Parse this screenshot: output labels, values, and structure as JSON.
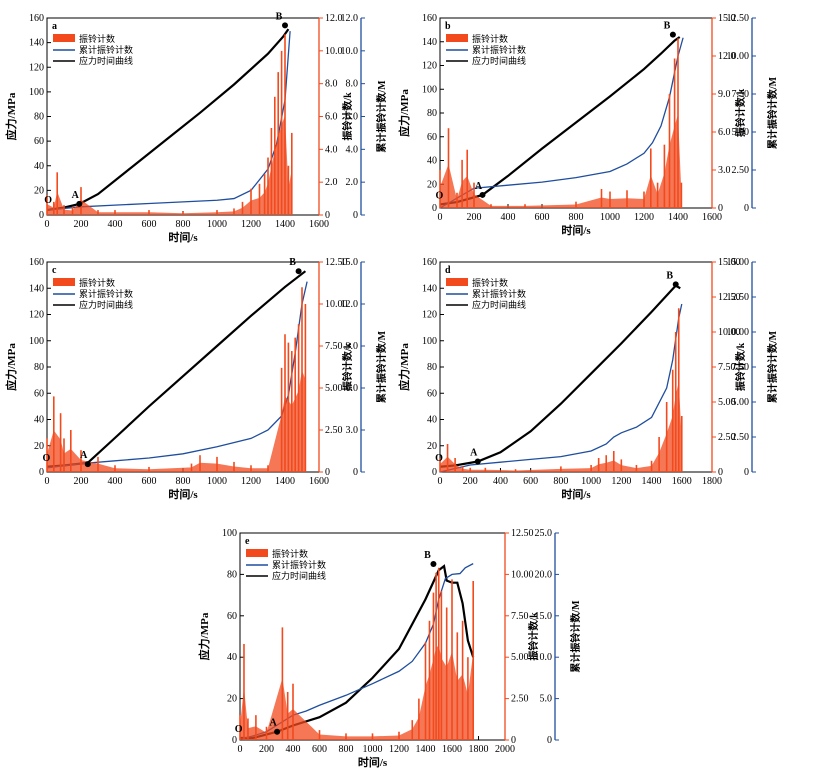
{
  "chart_data": [
    {
      "type": "line",
      "panel_label": "a",
      "xlabel": "时间/s",
      "ylabel": "应力/MPa",
      "y2label": "振铃计数/k",
      "y3label": "累计振铃计数/M",
      "xlim": [
        0,
        1600
      ],
      "xticks": [
        0,
        200,
        400,
        600,
        800,
        1000,
        1200,
        1400,
        1600
      ],
      "ylim": [
        0,
        160
      ],
      "yticks": [
        0,
        20,
        40,
        60,
        80,
        100,
        120,
        140,
        160
      ],
      "y2lim": [
        0,
        12
      ],
      "y2ticks": [
        "0",
        "2.0",
        "4.0",
        "6.0",
        "8.0",
        "10.0",
        "12.0"
      ],
      "y3lim": [
        0,
        12
      ],
      "y3ticks": [
        "0",
        "2.0",
        "4.0",
        "6.0",
        "8.0",
        "10.0",
        "12.0"
      ],
      "legend": [
        "振铃计数",
        "累计振铃计数",
        "应力时间曲线"
      ],
      "point_labels": [
        {
          "label": "O",
          "x": 30,
          "y": 5
        },
        {
          "label": "A",
          "x": 190,
          "y": 9
        },
        {
          "label": "B",
          "x": 1400,
          "y": 154
        }
      ],
      "series": [
        {
          "name": "应力时间曲线",
          "axis": "stress",
          "x": [
            0,
            50,
            100,
            190,
            300,
            500,
            700,
            900,
            1100,
            1300,
            1390,
            1420
          ],
          "y": [
            4,
            5,
            6,
            9,
            17,
            39,
            61,
            83,
            106,
            131,
            145,
            151
          ]
        },
        {
          "name": "累计振铃计数",
          "axis": "cumulative",
          "x": [
            0,
            200,
            400,
            600,
            800,
            1000,
            1100,
            1200,
            1300,
            1350,
            1400,
            1430
          ],
          "y": [
            0.3,
            0.5,
            0.6,
            0.7,
            0.8,
            0.9,
            1.0,
            1.5,
            2.8,
            4.3,
            7.0,
            11.2
          ]
        },
        {
          "name": "振铃计数",
          "axis": "ring",
          "x": [
            0,
            40,
            60,
            100,
            150,
            200,
            300,
            400,
            600,
            800,
            1000,
            1100,
            1150,
            1200,
            1250,
            1280,
            1300,
            1320,
            1340,
            1360,
            1380,
            1400,
            1420,
            1440
          ],
          "y": [
            1.2,
            0.8,
            2.6,
            0.6,
            0.5,
            1.7,
            0.3,
            0.3,
            0.3,
            0.2,
            0.3,
            0.4,
            0.8,
            1.6,
            1.9,
            2.5,
            3.5,
            5.3,
            7.2,
            8.7,
            10.0,
            11.0,
            3.0,
            5.0
          ]
        }
      ]
    },
    {
      "type": "line",
      "panel_label": "b",
      "xlabel": "时间/s",
      "ylabel": "应力/MPa",
      "y2label": "振铃计数/k",
      "y3label": "累计振铃计数/M",
      "xlim": [
        0,
        1600
      ],
      "xticks": [
        0,
        200,
        400,
        600,
        800,
        1000,
        1200,
        1400,
        1600
      ],
      "ylim": [
        0,
        160
      ],
      "yticks": [
        0,
        20,
        40,
        60,
        80,
        100,
        120,
        140,
        160
      ],
      "y2lim": [
        0,
        15
      ],
      "y2ticks": [
        "0",
        "3.0",
        "6.0",
        "9.0",
        "12.0",
        "15.0"
      ],
      "y3lim": [
        0,
        12.5
      ],
      "y3ticks": [
        "0",
        "2.50",
        "5.00",
        "7.50",
        "10.00",
        "12.50"
      ],
      "legend": [
        "振铃计数",
        "累计振铃计数",
        "应力时间曲线"
      ],
      "point_labels": [
        {
          "label": "O",
          "x": 20,
          "y": 3
        },
        {
          "label": "A",
          "x": 250,
          "y": 11
        },
        {
          "label": "B",
          "x": 1370,
          "y": 146
        }
      ],
      "series": [
        {
          "name": "应力时间曲线",
          "axis": "stress",
          "x": [
            0,
            100,
            250,
            400,
            600,
            800,
            1000,
            1200,
            1300,
            1380,
            1410
          ],
          "y": [
            3,
            5,
            11,
            27,
            50,
            72,
            94,
            117,
            130,
            141,
            144
          ]
        },
        {
          "name": "累计振铃计数",
          "axis": "cumulative",
          "x": [
            0,
            200,
            400,
            600,
            800,
            1000,
            1100,
            1200,
            1250,
            1300,
            1350,
            1400,
            1430
          ],
          "y": [
            0,
            1.3,
            1.5,
            1.7,
            2.0,
            2.4,
            2.9,
            3.6,
            4.3,
            5.4,
            7.3,
            10.0,
            11.2
          ]
        },
        {
          "name": "振铃计数",
          "axis": "ring",
          "x": [
            0,
            50,
            100,
            130,
            160,
            200,
            300,
            500,
            800,
            950,
            1000,
            1100,
            1200,
            1240,
            1280,
            1320,
            1350,
            1380,
            1400,
            1420
          ],
          "y": [
            3.0,
            6.3,
            1.2,
            3.8,
            4.6,
            2.0,
            0.3,
            0.3,
            0.5,
            1.5,
            1.3,
            1.4,
            1.3,
            4.7,
            2.0,
            5.0,
            9.0,
            11.8,
            13.4,
            2.0
          ]
        }
      ]
    },
    {
      "type": "line",
      "panel_label": "c",
      "xlabel": "时间/s",
      "ylabel": "应力/MPa",
      "y2label": "振铃计数/k",
      "y3label": "累计振铃计数/M",
      "xlim": [
        0,
        1600
      ],
      "xticks": [
        0,
        200,
        400,
        600,
        800,
        1000,
        1200,
        1400,
        1600
      ],
      "ylim": [
        0,
        160
      ],
      "yticks": [
        0,
        20,
        40,
        60,
        80,
        100,
        120,
        140,
        160
      ],
      "y2lim": [
        0,
        12.5
      ],
      "y2ticks": [
        "0",
        "2.50",
        "5.00",
        "7.50",
        "10.00",
        "12.50"
      ],
      "y3lim": [
        0,
        15
      ],
      "y3ticks": [
        "0",
        "3.0",
        "6.0",
        "9.0",
        "12.0",
        "15.0"
      ],
      "legend": [
        "振铃计数",
        "累计振铃计数",
        "应力时间曲线"
      ],
      "point_labels": [
        {
          "label": "O",
          "x": 20,
          "y": 4
        },
        {
          "label": "A",
          "x": 240,
          "y": 6
        },
        {
          "label": "B",
          "x": 1480,
          "y": 153
        }
      ],
      "series": [
        {
          "name": "应力时间曲线",
          "axis": "stress",
          "x": [
            0,
            100,
            240,
            400,
            600,
            800,
            1000,
            1200,
            1400,
            1500,
            1520
          ],
          "y": [
            4,
            5,
            7,
            26,
            50,
            73,
            96,
            119,
            141,
            151,
            153
          ]
        },
        {
          "name": "累计振铃计数",
          "axis": "cumulative",
          "x": [
            0,
            200,
            400,
            600,
            800,
            1000,
            1200,
            1300,
            1380,
            1420,
            1460,
            1500,
            1530
          ],
          "y": [
            0.3,
            0.6,
            0.8,
            1.0,
            1.3,
            1.8,
            2.4,
            3.0,
            4.0,
            5.5,
            8.5,
            12.0,
            13.6
          ]
        },
        {
          "name": "振铃计数",
          "axis": "ring",
          "x": [
            0,
            40,
            80,
            100,
            140,
            200,
            300,
            400,
            600,
            850,
            900,
            1000,
            1100,
            1200,
            1300,
            1380,
            1400,
            1420,
            1440,
            1460,
            1480,
            1500,
            1520
          ],
          "y": [
            2.0,
            4.5,
            3.5,
            2.0,
            2.5,
            1.3,
            0.9,
            0.4,
            0.3,
            0.5,
            1.0,
            0.9,
            0.6,
            0.4,
            0.4,
            6.2,
            8.2,
            7.7,
            7.2,
            8.0,
            8.8,
            11.0,
            10.0
          ]
        }
      ]
    },
    {
      "type": "line",
      "panel_label": "d",
      "xlabel": "时间/s",
      "ylabel": "应力/MPa",
      "y2label": "振铃计数/k",
      "y3label": "累计振铃计数/M",
      "xlim": [
        0,
        1800
      ],
      "xticks": [
        0,
        200,
        400,
        600,
        800,
        1000,
        1200,
        1400,
        1600,
        1800
      ],
      "ylim": [
        0,
        160
      ],
      "yticks": [
        0,
        20,
        40,
        60,
        80,
        100,
        120,
        140,
        160
      ],
      "y2lim": [
        0,
        15
      ],
      "y2ticks": [
        "0",
        "2.50",
        "5.00",
        "7.50",
        "10.00",
        "12.50",
        "15.00"
      ],
      "y3lim": [
        0,
        15
      ],
      "y3ticks": [
        "0",
        "2.50",
        "5.00",
        "7.50",
        "10.00",
        "12.50",
        "15.00"
      ],
      "legend": [
        "振铃计数",
        "累计振铃计数",
        "应力时间曲线"
      ],
      "point_labels": [
        {
          "label": "O",
          "x": 20,
          "y": 4
        },
        {
          "label": "A",
          "x": 250,
          "y": 8
        },
        {
          "label": "B",
          "x": 1560,
          "y": 143
        }
      ],
      "series": [
        {
          "name": "应力时间曲线",
          "axis": "stress",
          "x": [
            0,
            100,
            250,
            400,
            600,
            800,
            1000,
            1200,
            1400,
            1560,
            1590
          ],
          "y": [
            4,
            5,
            8,
            15,
            31,
            52,
            75,
            98,
            122,
            142,
            140
          ]
        },
        {
          "name": "累计振铃计数",
          "axis": "cumulative",
          "x": [
            0,
            200,
            400,
            600,
            800,
            1000,
            1100,
            1150,
            1200,
            1300,
            1400,
            1500,
            1540,
            1580,
            1600
          ],
          "y": [
            0,
            0.5,
            0.7,
            0.9,
            1.1,
            1.5,
            2.0,
            2.5,
            2.8,
            3.2,
            3.9,
            6.0,
            8.0,
            11.0,
            12.0
          ]
        },
        {
          "name": "振铃计数",
          "axis": "ring",
          "x": [
            0,
            50,
            100,
            150,
            200,
            300,
            500,
            800,
            1000,
            1050,
            1100,
            1150,
            1200,
            1300,
            1400,
            1450,
            1500,
            1540,
            1560,
            1580,
            1600
          ],
          "y": [
            1.0,
            2.0,
            1.0,
            0.4,
            0.3,
            0.3,
            0.2,
            0.4,
            0.5,
            1.0,
            1.2,
            1.5,
            0.9,
            0.5,
            0.8,
            2.5,
            5.0,
            7.3,
            10.0,
            11.7,
            4.0
          ]
        }
      ]
    },
    {
      "type": "line",
      "panel_label": "e",
      "xlabel": "时间/s",
      "ylabel": "应力/MPa",
      "y2label": "振铃计数/k",
      "y3label": "累计振铃计数/M",
      "xlim": [
        0,
        2000
      ],
      "xticks": [
        0,
        200,
        400,
        600,
        800,
        1000,
        1200,
        1400,
        1600,
        1800,
        2000
      ],
      "ylim": [
        0,
        100
      ],
      "yticks": [
        0,
        20,
        40,
        60,
        80,
        100
      ],
      "y2lim": [
        0,
        12.5
      ],
      "y2ticks": [
        "0",
        "2.50",
        "5.00",
        "7.50",
        "10.00",
        "12.50"
      ],
      "y3lim": [
        0,
        25
      ],
      "y3ticks": [
        "0",
        "5.0",
        "10.0",
        "15.0",
        "20.0",
        "25.0"
      ],
      "legend": [
        "振铃计数",
        "累计振铃计数",
        "应力时间曲线"
      ],
      "point_labels": [
        {
          "label": "O",
          "x": 20,
          "y": 1
        },
        {
          "label": "A",
          "x": 280,
          "y": 4
        },
        {
          "label": "B",
          "x": 1460,
          "y": 85
        }
      ],
      "series": [
        {
          "name": "应力时间曲线",
          "axis": "stress",
          "x": [
            0,
            100,
            280,
            400,
            600,
            800,
            1000,
            1200,
            1400,
            1500,
            1540,
            1560,
            1600,
            1640,
            1680,
            1720,
            1760
          ],
          "y": [
            1,
            1,
            4,
            7,
            11,
            18,
            30,
            44,
            68,
            82,
            84,
            77,
            76,
            76,
            66,
            48,
            40
          ]
        },
        {
          "name": "累计振铃计数",
          "axis": "cumulative",
          "x": [
            0,
            100,
            200,
            300,
            400,
            500,
            600,
            800,
            1000,
            1200,
            1300,
            1400,
            1460,
            1500,
            1550,
            1600,
            1660,
            1700,
            1760
          ],
          "y": [
            0.1,
            0.5,
            1.0,
            2.0,
            3.0,
            3.5,
            4.2,
            5.4,
            6.8,
            8.3,
            9.5,
            11.7,
            14.0,
            17.0,
            19.5,
            20.0,
            20.1,
            20.8,
            21.3
          ]
        },
        {
          "name": "振铃计数",
          "axis": "ring",
          "x": [
            0,
            30,
            60,
            120,
            200,
            320,
            360,
            400,
            600,
            800,
            1000,
            1200,
            1300,
            1350,
            1400,
            1430,
            1460,
            1480,
            1500,
            1520,
            1560,
            1600,
            1640,
            1680,
            1720,
            1760
          ],
          "y": [
            1.5,
            5.8,
            1.3,
            1.5,
            0.8,
            6.8,
            2.9,
            3.4,
            0.6,
            0.4,
            0.4,
            0.5,
            1.2,
            2.5,
            5.9,
            7.2,
            8.9,
            10.1,
            10.4,
            9.0,
            8.0,
            9.7,
            6.5,
            7.2,
            5.0,
            9.6
          ]
        }
      ]
    }
  ]
}
